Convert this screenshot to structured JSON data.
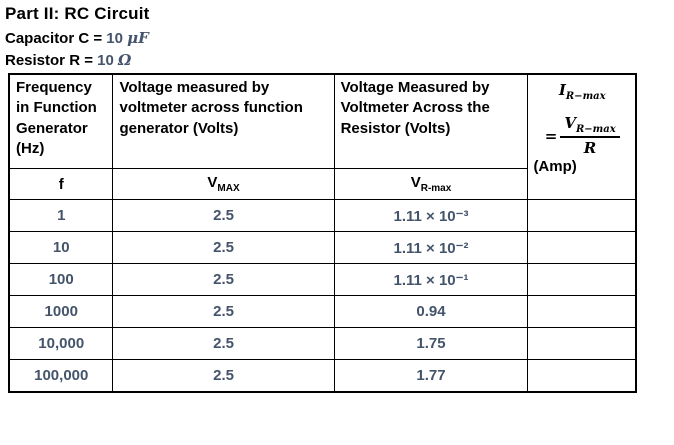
{
  "colors": {
    "accent_text": "#44546A",
    "table_border": "#000000",
    "heading_text": "#000000"
  },
  "header": {
    "title": "Part II: RC Circuit",
    "capacitor": {
      "label": "Capacitor C =",
      "value": "10",
      "unit": "μF"
    },
    "resistor": {
      "label": "Resistor R =",
      "value": "10",
      "unit": "Ω"
    }
  },
  "table": {
    "column_headers": {
      "frequency": "Frequency in Function Generator (Hz)",
      "v_source": "Voltage measured by voltmeter across function generator (Volts)",
      "v_resistor": "Voltage Measured by Voltmeter Across the Resistor (Volts)"
    },
    "formula": {
      "current_base": "I",
      "current_sub": "R−max",
      "equals": "=",
      "numerator_base": "V",
      "numerator_sub": "R−max",
      "denominator": "R",
      "unit": "(Amp)"
    },
    "symbols": {
      "f": "f",
      "vmax_base": "V",
      "vmax_sub": "MAX",
      "vrmax_base": "V",
      "vrmax_sub": "R-max"
    },
    "rows": [
      {
        "f": "1",
        "vmax": "2.5",
        "vrmax": "1.11 × 10⁻³",
        "irmax": ""
      },
      {
        "f": "10",
        "vmax": "2.5",
        "vrmax": "1.11 × 10⁻²",
        "irmax": ""
      },
      {
        "f": "100",
        "vmax": "2.5",
        "vrmax": "1.11 × 10⁻¹",
        "irmax": ""
      },
      {
        "f": "1000",
        "vmax": "2.5",
        "vrmax": "0.94",
        "irmax": ""
      },
      {
        "f": "10,000",
        "vmax": "2.5",
        "vrmax": "1.75",
        "irmax": ""
      },
      {
        "f": "100,000",
        "vmax": "2.5",
        "vrmax": "1.77",
        "irmax": ""
      }
    ]
  }
}
